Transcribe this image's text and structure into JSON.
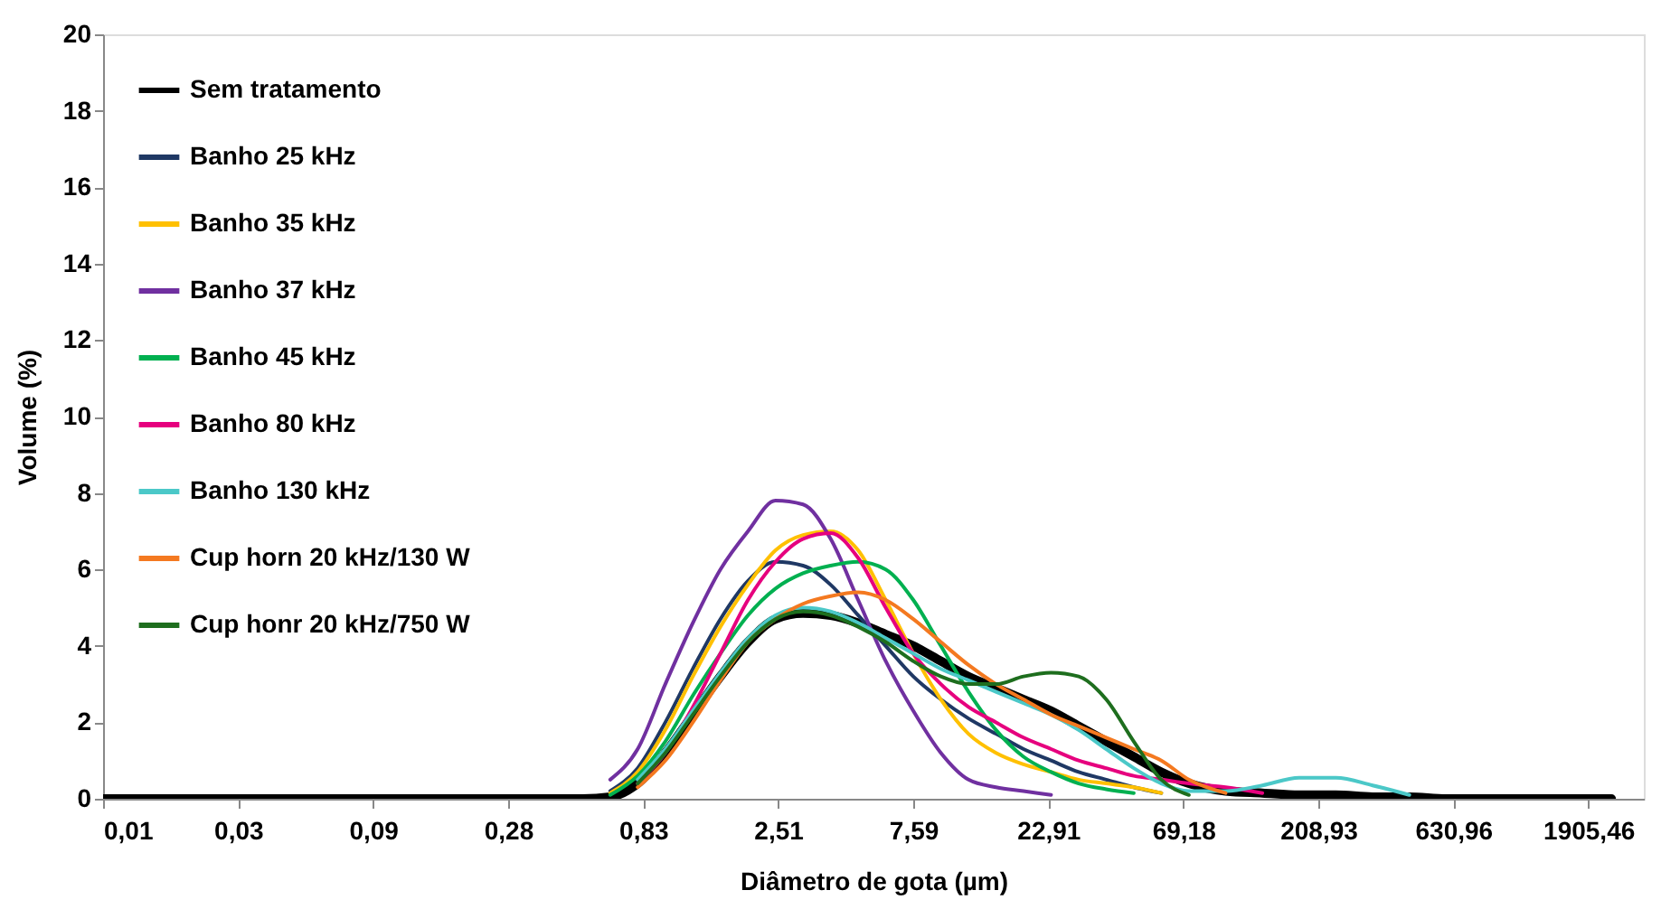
{
  "chart_data": {
    "type": "line",
    "xlabel": "Diâmetro de gota (µm)",
    "ylabel": "Volume (%)",
    "x": [
      0.01,
      0.507,
      0.635,
      0.795,
      0.997,
      1.249,
      1.565,
      1.961,
      2.457,
      3.078,
      3.857,
      4.833,
      6.055,
      7.59,
      9.51,
      11.92,
      14.93,
      18.71,
      23.44,
      29.38,
      36.81,
      46.12,
      57.79,
      72.42,
      97.8,
      132.1,
      178.6,
      241.2,
      325.8,
      440.1,
      594.5,
      2301
    ],
    "xlim": [
      0.01,
      3000
    ],
    "log": "x",
    "xticks": [
      {
        "value": 0.01,
        "label": "0,01"
      },
      {
        "value": 0.0302,
        "label": "0,03"
      },
      {
        "value": 0.0912,
        "label": "0,09"
      },
      {
        "value": 0.2754,
        "label": "0,28"
      },
      {
        "value": 0.8318,
        "label": "0,83"
      },
      {
        "value": 2.51,
        "label": "2,51"
      },
      {
        "value": 7.59,
        "label": "7,59"
      },
      {
        "value": 22.91,
        "label": "22,91"
      },
      {
        "value": 69.18,
        "label": "69,18"
      },
      {
        "value": 208.93,
        "label": "208,93"
      },
      {
        "value": 630.96,
        "label": "630,96"
      },
      {
        "value": 1905.46,
        "label": "1905,46"
      }
    ],
    "ylim": [
      0,
      20
    ],
    "yticks": [
      0,
      2,
      4,
      6,
      8,
      10,
      12,
      14,
      16,
      18,
      20
    ],
    "grid": false,
    "legend": "top left",
    "line_style": "solid",
    "marker": "none",
    "series": [
      {
        "name": "Sem tratamento",
        "color": "#000000",
        "values": [
          0,
          0,
          0.05,
          0.4,
          1.2,
          2.2,
          3.2,
          4.1,
          4.7,
          4.85,
          4.8,
          4.6,
          4.3,
          4.0,
          3.6,
          3.2,
          2.9,
          2.6,
          2.3,
          1.9,
          1.5,
          1.1,
          0.7,
          0.4,
          0.2,
          0.15,
          0.1,
          0.1,
          0.05,
          0.05,
          0,
          0
        ]
      },
      {
        "name": "Banho 25 kHz",
        "color": "#1f3864",
        "values": [
          null,
          null,
          0.2,
          0.8,
          2.0,
          3.4,
          4.7,
          5.7,
          6.2,
          6.1,
          5.6,
          4.8,
          4.0,
          3.2,
          2.6,
          2.1,
          1.7,
          1.3,
          1.0,
          0.7,
          0.5,
          0.3,
          0.15,
          null,
          null,
          null,
          null,
          null,
          null,
          null,
          null,
          null
        ]
      },
      {
        "name": "Banho 35 kHz",
        "color": "#ffc000",
        "values": [
          null,
          null,
          0.15,
          0.7,
          1.8,
          3.2,
          4.5,
          5.6,
          6.5,
          6.9,
          7.0,
          6.5,
          5.2,
          3.8,
          2.6,
          1.7,
          1.2,
          0.9,
          0.7,
          0.5,
          0.4,
          0.3,
          0.15,
          null,
          null,
          null,
          null,
          null,
          null,
          null,
          null,
          null
        ]
      },
      {
        "name": "Banho 37 kHz",
        "color": "#7030a0",
        "values": [
          null,
          null,
          0.5,
          1.3,
          3.0,
          4.6,
          6.0,
          7.0,
          7.8,
          7.7,
          6.8,
          5.2,
          3.6,
          2.3,
          1.2,
          0.5,
          0.3,
          0.2,
          0.1,
          null,
          null,
          null,
          null,
          null,
          null,
          null,
          null,
          null,
          null,
          null,
          null,
          null
        ]
      },
      {
        "name": "Banho 45 kHz",
        "color": "#00b050",
        "values": [
          null,
          null,
          0.1,
          0.6,
          1.5,
          2.7,
          3.8,
          4.8,
          5.5,
          5.9,
          6.1,
          6.2,
          6.0,
          5.2,
          4.0,
          2.8,
          1.8,
          1.1,
          0.7,
          0.4,
          0.25,
          0.15,
          null,
          null,
          null,
          null,
          null,
          null,
          null,
          null,
          null,
          null
        ]
      },
      {
        "name": "Banho 80 kHz",
        "color": "#e6007e",
        "values": [
          null,
          null,
          null,
          0.4,
          1.2,
          2.4,
          3.8,
          5.2,
          6.2,
          6.8,
          6.95,
          6.3,
          5.0,
          3.8,
          3.0,
          2.4,
          2.0,
          1.6,
          1.3,
          1.0,
          0.8,
          0.6,
          0.5,
          0.4,
          0.3,
          0.15,
          null,
          null,
          null,
          null,
          null,
          null
        ]
      },
      {
        "name": "Banho 130 kHz",
        "color": "#4bc8c8",
        "values": [
          null,
          null,
          null,
          0.5,
          1.3,
          2.3,
          3.3,
          4.2,
          4.8,
          5.0,
          4.9,
          4.6,
          4.2,
          3.8,
          3.4,
          3.1,
          2.8,
          2.5,
          2.2,
          1.8,
          1.3,
          0.8,
          0.4,
          0.2,
          0.2,
          0.35,
          0.55,
          0.55,
          0.35,
          0.1,
          null,
          null
        ]
      },
      {
        "name": "Cup horn 20 kHz/130 W",
        "color": "#f47920",
        "values": [
          null,
          null,
          null,
          0.3,
          1.0,
          2.0,
          3.1,
          4.1,
          4.7,
          5.1,
          5.3,
          5.4,
          5.2,
          4.7,
          4.1,
          3.5,
          3.0,
          2.6,
          2.2,
          1.9,
          1.6,
          1.3,
          1.0,
          0.5,
          0.15,
          null,
          null,
          null,
          null,
          null,
          null,
          null
        ]
      },
      {
        "name": "Cup honr 20 kHz/750 W",
        "color": "#1e6e1e",
        "values": [
          null,
          null,
          null,
          0.4,
          1.2,
          2.2,
          3.2,
          4.1,
          4.7,
          4.9,
          4.8,
          4.5,
          4.1,
          3.6,
          3.2,
          3.0,
          3.0,
          3.2,
          3.3,
          3.2,
          2.6,
          1.5,
          0.5,
          0.1,
          null,
          null,
          null,
          null,
          null,
          null,
          null,
          null
        ]
      }
    ]
  }
}
